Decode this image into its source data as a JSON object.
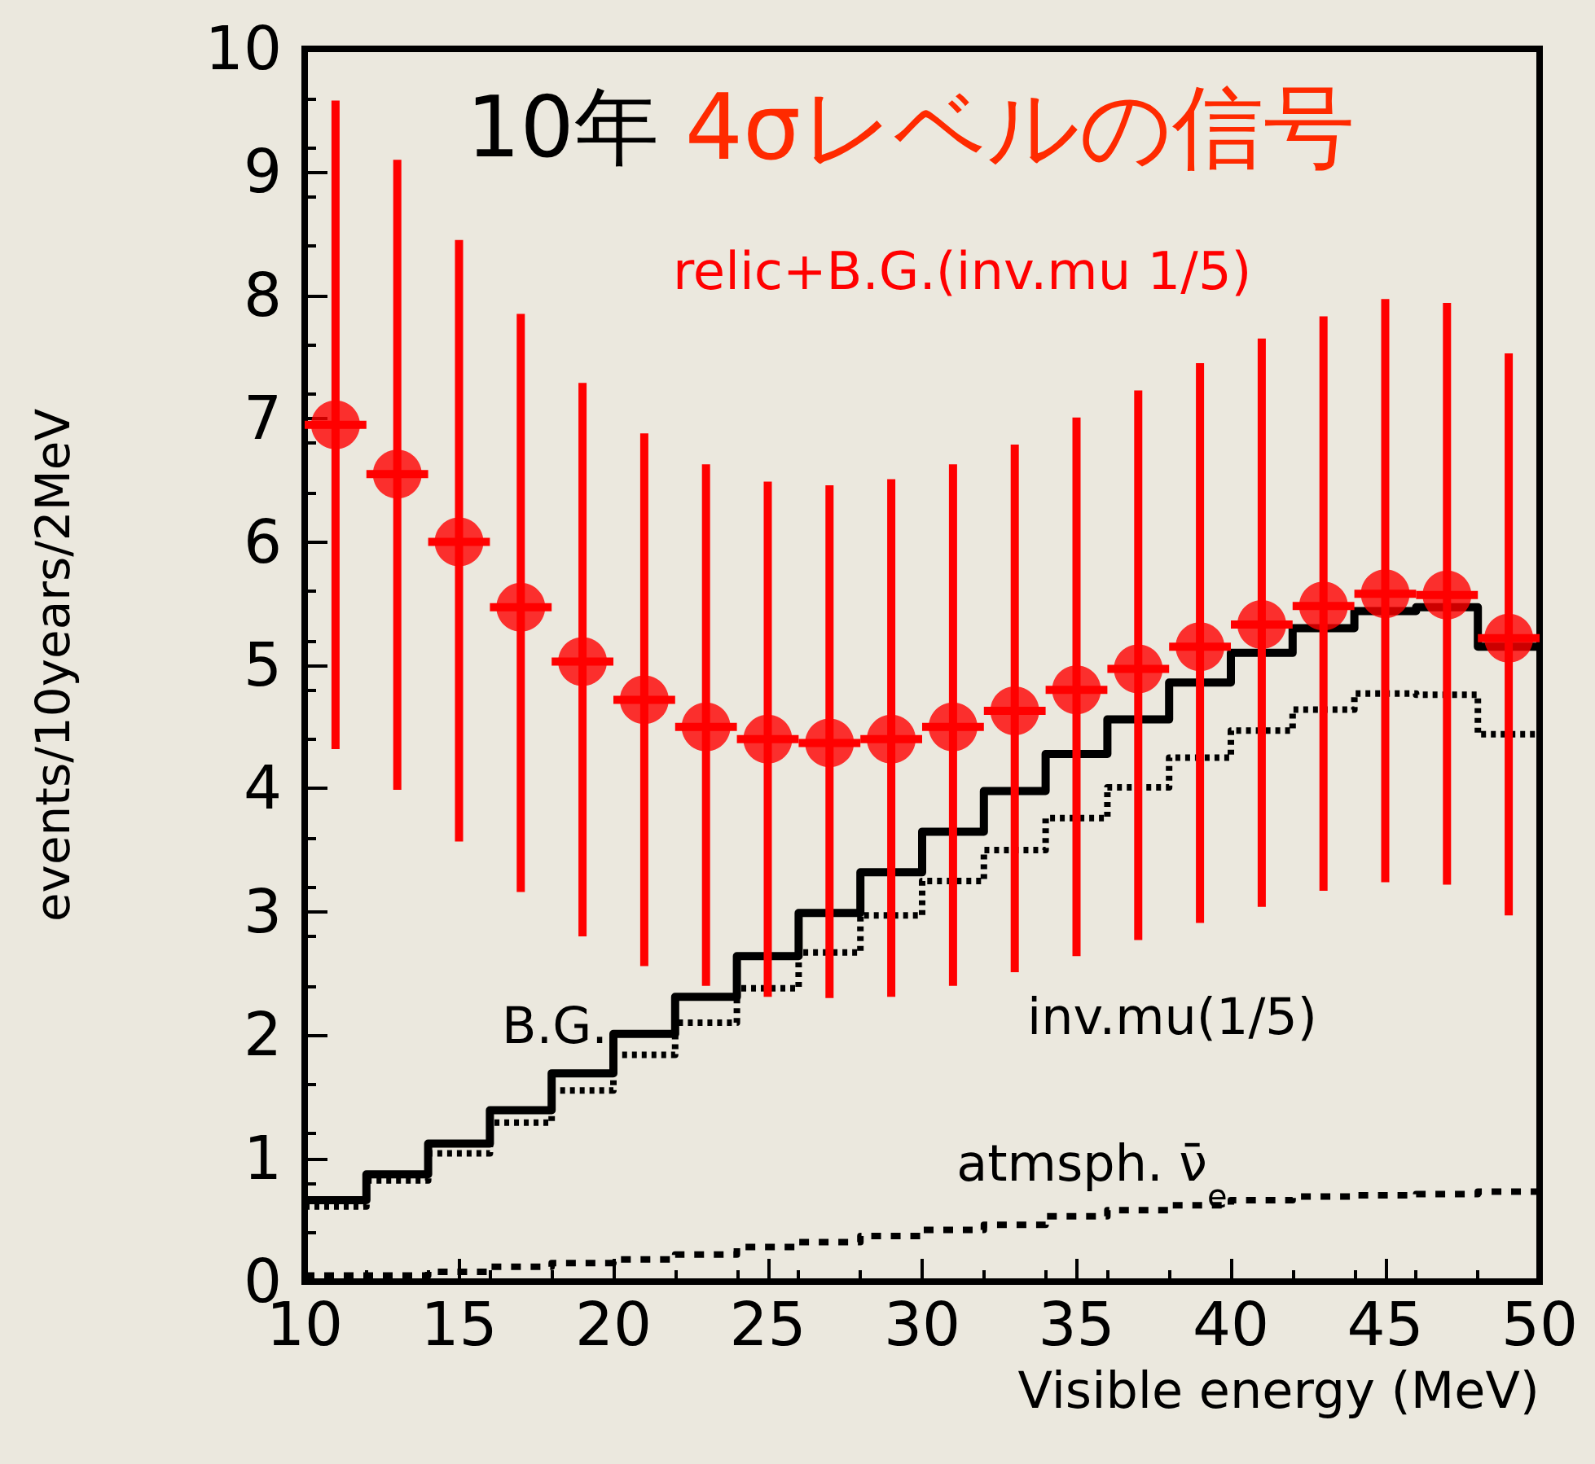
{
  "chart_data": {
    "type": "step",
    "title": "10年",
    "subtitle": "4σレベルの信号",
    "xlabel": "Visible energy (MeV)",
    "ylabel": "events/10years/2MeV",
    "xlim": [
      10,
      50
    ],
    "xticks": [
      10,
      15,
      20,
      25,
      30,
      35,
      40,
      45,
      50
    ],
    "ylim": [
      0,
      10
    ],
    "yticks": [
      0,
      1,
      2,
      3,
      4,
      5,
      6,
      7,
      8,
      9,
      10
    ],
    "series": [
      {
        "name": "relic+B.G.(inv.mu 1/5)",
        "type": "scatter",
        "marker": "circle",
        "color": "#ff0000",
        "x": [
          11,
          13,
          15,
          17,
          19,
          21,
          23,
          25,
          27,
          29,
          31,
          33,
          35,
          37,
          39,
          41,
          43,
          45,
          47,
          49
        ],
        "values": [
          6.95,
          6.55,
          6.0,
          5.47,
          5.03,
          4.72,
          4.5,
          4.4,
          4.37,
          4.4,
          4.5,
          4.63,
          4.8,
          4.97,
          5.15,
          5.33,
          5.48,
          5.58,
          5.57,
          5.22
        ],
        "errors": [
          [
            4.32,
            9.58
          ],
          [
            3.99,
            9.1
          ],
          [
            3.57,
            8.45
          ],
          [
            3.16,
            7.85
          ],
          [
            2.8,
            7.29
          ],
          [
            2.56,
            6.88
          ],
          [
            2.4,
            6.63
          ],
          [
            2.31,
            6.49
          ],
          [
            2.3,
            6.46
          ],
          [
            2.31,
            6.51
          ],
          [
            2.4,
            6.63
          ],
          [
            2.51,
            6.79
          ],
          [
            2.64,
            7.01
          ],
          [
            2.77,
            7.23
          ],
          [
            2.91,
            7.45
          ],
          [
            3.04,
            7.65
          ],
          [
            3.17,
            7.83
          ],
          [
            3.24,
            7.97
          ],
          [
            3.22,
            7.94
          ],
          [
            2.97,
            7.53
          ]
        ],
        "xerrors": [
          1,
          1,
          1,
          1,
          1,
          1,
          1,
          1,
          1,
          1,
          1,
          1,
          1,
          1,
          1,
          1,
          1,
          1,
          1,
          1
        ]
      },
      {
        "name": "B.G.",
        "line_style": "solid",
        "color": "#000000",
        "x": [
          10,
          12,
          14,
          16,
          18,
          20,
          22,
          24,
          26,
          28,
          30,
          32,
          34,
          36,
          38,
          40,
          42,
          44,
          46,
          48,
          50
        ],
        "values": [
          0.66,
          0.87,
          1.12,
          1.39,
          1.69,
          2.01,
          2.31,
          2.64,
          2.99,
          3.32,
          3.65,
          3.98,
          4.28,
          4.56,
          4.86,
          5.1,
          5.3,
          5.44,
          5.47,
          5.15,
          5.15
        ]
      },
      {
        "name": "inv.mu(1/5)",
        "line_style": "dotted",
        "color": "#000000",
        "x": [
          10,
          12,
          14,
          16,
          18,
          20,
          22,
          24,
          26,
          28,
          30,
          32,
          34,
          36,
          38,
          40,
          42,
          44,
          46,
          48,
          50
        ],
        "values": [
          0.61,
          0.82,
          1.04,
          1.29,
          1.55,
          1.84,
          2.1,
          2.38,
          2.67,
          2.97,
          3.25,
          3.5,
          3.76,
          4.01,
          4.25,
          4.47,
          4.64,
          4.77,
          4.76,
          4.44,
          4.44
        ]
      },
      {
        "name": "atmsph. ν̄$_{e}$",
        "line_style": "dashed",
        "color": "#000000",
        "x": [
          10,
          12,
          14,
          16,
          18,
          20,
          22,
          24,
          26,
          28,
          30,
          32,
          34,
          36,
          38,
          40,
          42,
          44,
          46,
          48,
          50
        ],
        "values": [
          0.05,
          0.05,
          0.08,
          0.12,
          0.15,
          0.18,
          0.22,
          0.28,
          0.32,
          0.37,
          0.42,
          0.46,
          0.53,
          0.58,
          0.62,
          0.66,
          0.69,
          0.7,
          0.71,
          0.73,
          0.73
        ]
      }
    ]
  }
}
